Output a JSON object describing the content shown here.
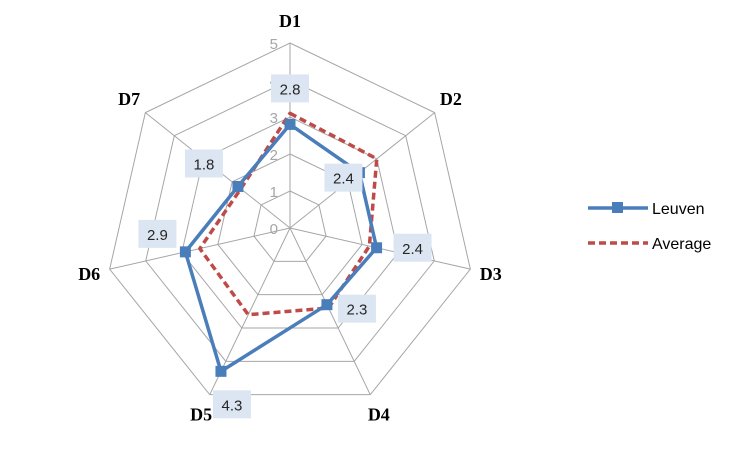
{
  "chart_data": {
    "type": "radar",
    "categories": [
      "D1",
      "D2",
      "D3",
      "D4",
      "D5",
      "D6",
      "D7"
    ],
    "rlim": [
      0,
      5
    ],
    "r_ticks": [
      "0",
      "1",
      "2",
      "3",
      "4",
      "5"
    ],
    "grid": true,
    "legend_position": "right",
    "series": [
      {
        "name": "Leuven",
        "values": [
          2.8,
          2.4,
          2.4,
          2.3,
          4.3,
          2.9,
          1.8
        ],
        "color": "#4a7ebb",
        "style": "solid-with-square-markers",
        "data_labels": [
          "2.8",
          "2.4",
          "2.4",
          "2.3",
          "4.3",
          "2.9",
          "1.8"
        ]
      },
      {
        "name": "Average",
        "values": [
          3.1,
          3.0,
          2.2,
          2.4,
          2.6,
          2.5,
          1.7
        ],
        "color": "#be4b48",
        "style": "dashed"
      }
    ]
  }
}
